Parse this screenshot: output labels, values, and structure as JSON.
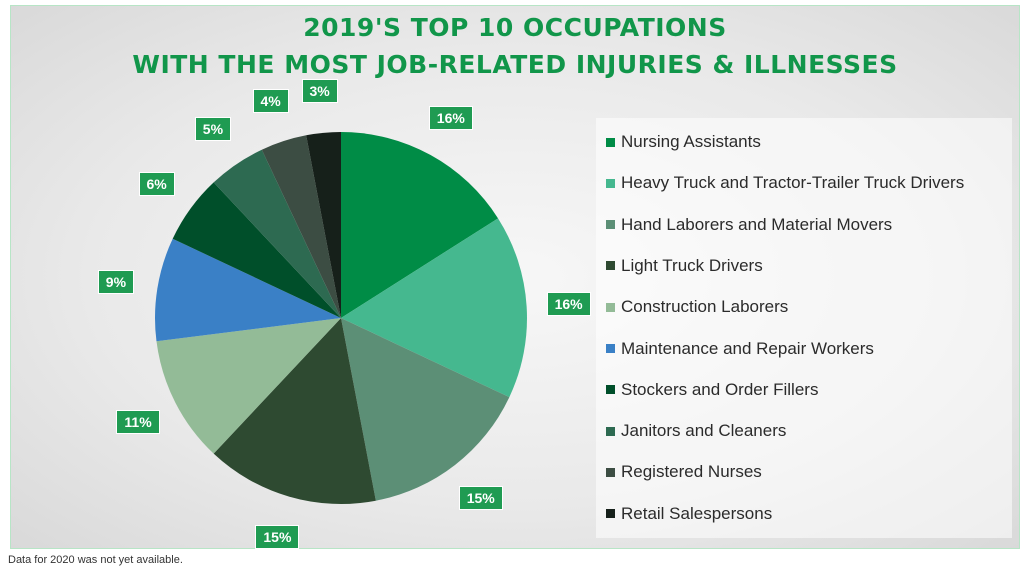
{
  "chart_data": {
    "type": "pie",
    "title": "2019'S TOP 10 OCCUPATIONS",
    "subtitle": "WITH THE MOST JOB-RELATED INJURIES & ILLNESSES",
    "legend_position": "right",
    "slices": [
      {
        "label": "Nursing Assistants",
        "value": 16,
        "display": "16%",
        "color": "#008c46"
      },
      {
        "label": "Heavy Truck and Tractor-Trailer Truck Drivers",
        "value": 16,
        "display": "16%",
        "color": "#45b88f"
      },
      {
        "label": "Hand Laborers and Material Movers",
        "value": 15,
        "display": "15%",
        "color": "#5c8f76"
      },
      {
        "label": "Light Truck Drivers",
        "value": 15,
        "display": "15%",
        "color": "#2e4a31"
      },
      {
        "label": "Construction Laborers",
        "value": 11,
        "display": "11%",
        "color": "#93bb97"
      },
      {
        "label": "Maintenance and Repair Workers",
        "value": 9,
        "display": "9%",
        "color": "#3a80c6"
      },
      {
        "label": "Stockers and Order Fillers",
        "value": 6,
        "display": "6%",
        "color": "#004f2a"
      },
      {
        "label": "Janitors and Cleaners",
        "value": 5,
        "display": "5%",
        "color": "#2d6a51"
      },
      {
        "label": "Registered Nurses",
        "value": 4,
        "display": "4%",
        "color": "#3c4d43"
      },
      {
        "label": "Retail Salespersons",
        "value": 3,
        "display": "3%",
        "color": "#16201a"
      }
    ]
  },
  "footnote": "Data for 2020 was not yet available."
}
